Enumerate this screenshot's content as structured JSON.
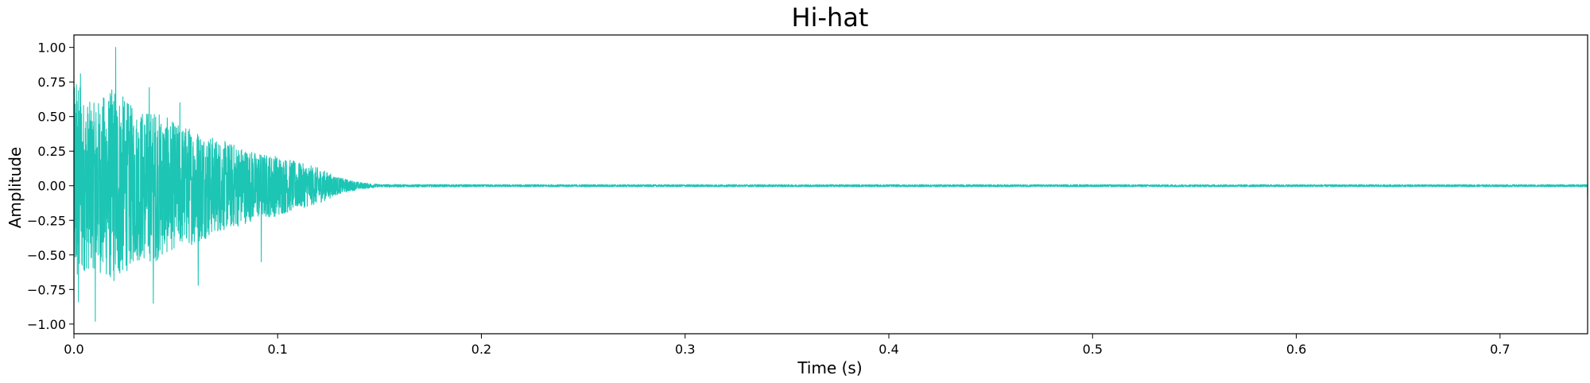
{
  "chart_data": {
    "type": "line",
    "title": "Hi-hat",
    "xlabel": "Time (s)",
    "ylabel": "Amplitude",
    "xlim": [
      0.0,
      0.743
    ],
    "ylim": [
      -1.07,
      1.09
    ],
    "x_ticks": [
      0.0,
      0.1,
      0.2,
      0.3,
      0.4,
      0.5,
      0.6,
      0.7
    ],
    "x_tick_labels": [
      "0.0",
      "0.1",
      "0.2",
      "0.3",
      "0.4",
      "0.5",
      "0.6",
      "0.7"
    ],
    "y_ticks": [
      1.0,
      0.75,
      0.5,
      0.25,
      0.0,
      -0.25,
      -0.5,
      -0.75,
      -1.0
    ],
    "y_tick_labels": [
      "1.00",
      "0.75",
      "0.50",
      "0.25",
      "0.00",
      "−0.25",
      "−0.50",
      "−0.75",
      "−1.00"
    ],
    "grid": false,
    "line_color": "#1cc5b4",
    "series": [
      {
        "envelope": {
          "t": [
            0.0,
            0.002,
            0.005,
            0.01,
            0.02,
            0.03,
            0.04,
            0.05,
            0.06,
            0.07,
            0.08,
            0.09,
            0.1,
            0.11,
            0.12,
            0.13,
            0.14,
            0.15,
            0.2,
            0.743
          ],
          "amp": [
            0.7,
            0.8,
            0.62,
            0.6,
            0.72,
            0.55,
            0.55,
            0.45,
            0.42,
            0.34,
            0.3,
            0.24,
            0.22,
            0.17,
            0.13,
            0.06,
            0.025,
            0.01,
            0.008,
            0.008
          ]
        },
        "peaks": [
          {
            "t": 0.0012,
            "v": 0.73
          },
          {
            "t": 0.0032,
            "v": 0.81
          },
          {
            "t": 0.0022,
            "v": -0.84
          },
          {
            "t": 0.0105,
            "v": -0.98
          },
          {
            "t": 0.0205,
            "v": 1.0
          },
          {
            "t": 0.037,
            "v": 0.71
          },
          {
            "t": 0.039,
            "v": -0.85
          },
          {
            "t": 0.052,
            "v": 0.6
          },
          {
            "t": 0.061,
            "v": -0.72
          },
          {
            "t": 0.083,
            "v": 0.22
          },
          {
            "t": 0.092,
            "v": -0.55
          }
        ],
        "end_value": -0.1
      }
    ]
  }
}
